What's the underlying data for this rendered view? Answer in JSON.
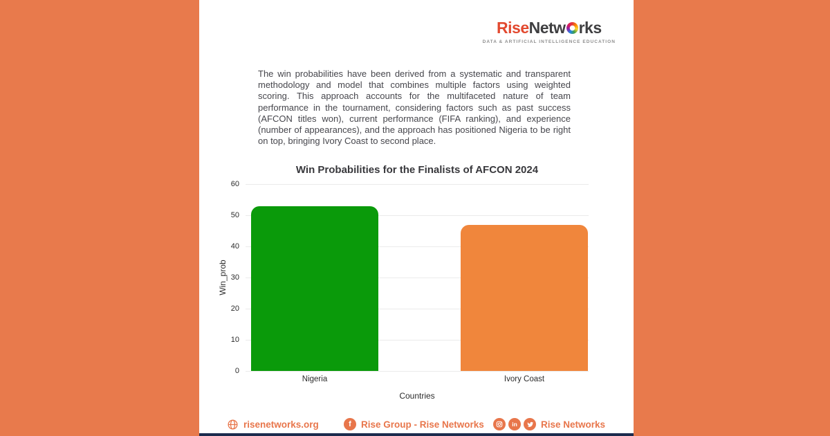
{
  "page": {
    "bg_color": "#E87A4C",
    "card_bg": "#FFFFFF",
    "bottom_strip_color": "#1B2B4D"
  },
  "logo": {
    "word_part1": "Rise",
    "word_part2": "Netw",
    "word_part3": "rks",
    "tagline": "DATA & ARTIFICIAL INTELLIGENCE EDUCATION"
  },
  "intro": {
    "text": "The win probabilities have been derived from a systematic and transparent methodology and model that combines multiple factors using weighted scoring. This approach accounts for the multifaceted nature of team performance in the tournament, considering factors such as past success (AFCON titles won), current performance (FIFA ranking), and experience (number of appearances), and the approach has positioned Nigeria to be right on top, bringing Ivory Coast to second place."
  },
  "chart_data": {
    "type": "bar",
    "title": "Win Probabilities for the Finalists of AFCON 2024",
    "categories": [
      "Nigeria",
      "Ivory Coast"
    ],
    "values": [
      53,
      47
    ],
    "bar_colors": [
      "#0A9A0A",
      "#F0863C"
    ],
    "xlabel": "Countries",
    "ylabel": "Win_prob",
    "ylim": [
      0,
      60
    ],
    "yticks": [
      0,
      10,
      20,
      30,
      40,
      50,
      60
    ],
    "grid": true,
    "legend": false
  },
  "footer": {
    "website_label": "risenetworks.org",
    "facebook_label": "Rise Group - Rise Networks",
    "social_label": "Rise Networks",
    "accent_color": "#E8764B"
  }
}
